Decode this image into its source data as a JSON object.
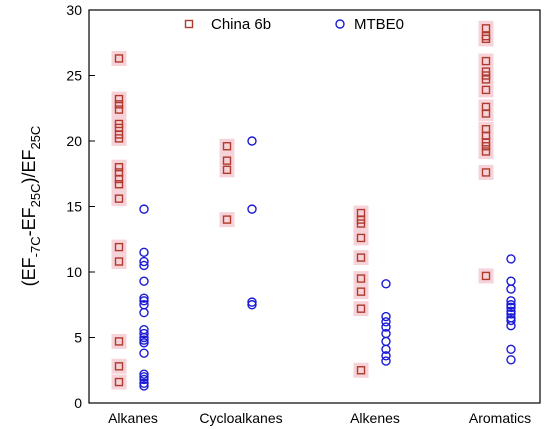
{
  "chart_data": {
    "type": "scatter",
    "title": "",
    "xlabel": "",
    "ylabel": {
      "lead": "(EF",
      "sub1": "-7C",
      "mid": "-EF",
      "sub2": "25C",
      "close": ")/EF",
      "sub3": "25C"
    },
    "categories": [
      "Alkanes",
      "Cycloalkanes",
      "Alkenes",
      "Aromatics"
    ],
    "ylim": [
      0,
      30
    ],
    "yticks": [
      0,
      5,
      10,
      15,
      20,
      25,
      30
    ],
    "grid": false,
    "legend_position": "top",
    "series": [
      {
        "name": "China 6b",
        "marker": "square",
        "color": "#b03a2e",
        "halo": "#f6d3d9",
        "values": [
          [
            26.3,
            23.2,
            22.8,
            22.4,
            21.3,
            21.0,
            20.5,
            20.2,
            18.0,
            17.6,
            17.1,
            16.7,
            15.6,
            11.9,
            10.8,
            4.7,
            2.8,
            1.6
          ],
          [
            19.6,
            18.5,
            17.8,
            14.0
          ],
          [
            14.5,
            14.0,
            13.7,
            12.6,
            11.1,
            9.5,
            8.5,
            7.2,
            2.5
          ],
          [
            28.6,
            28.0,
            27.8,
            26.1,
            25.3,
            25.0,
            24.7,
            23.9,
            22.6,
            22.1,
            20.9,
            20.4,
            19.9,
            19.6,
            19.2,
            17.6,
            9.7
          ]
        ]
      },
      {
        "name": "MTBE0",
        "marker": "circle",
        "color": "#1a1ad6",
        "values": [
          [
            14.8,
            11.5,
            10.8,
            10.5,
            9.3,
            8.0,
            7.8,
            7.5,
            6.9,
            5.6,
            5.3,
            5.0,
            4.8,
            4.6,
            3.8,
            2.2,
            2.0,
            1.8,
            1.5,
            1.3
          ],
          [
            20.0,
            14.8,
            7.7,
            7.5
          ],
          [
            9.1,
            6.6,
            6.2,
            5.8,
            5.3,
            4.7,
            4.1,
            3.6,
            3.2
          ],
          [
            11.0,
            9.3,
            8.7,
            7.8,
            7.5,
            7.3,
            7.0,
            6.8,
            6.5,
            6.3,
            5.9,
            4.1,
            3.3
          ]
        ]
      }
    ]
  }
}
